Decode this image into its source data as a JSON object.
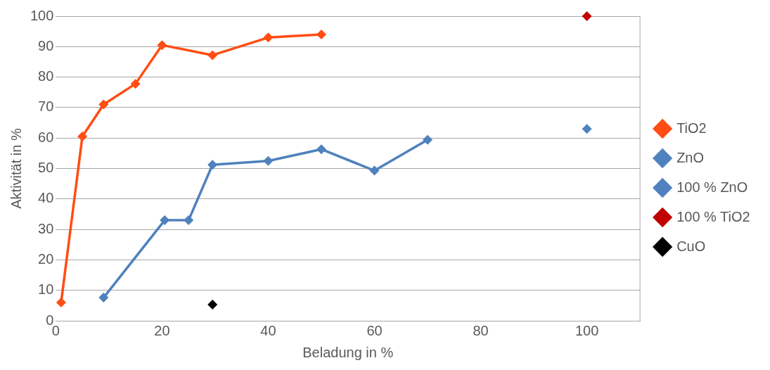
{
  "chart_data": {
    "type": "line",
    "xlabel": "Beladung in %",
    "ylabel": "Aktivität in %",
    "xlim": [
      0,
      110
    ],
    "xticks": [
      0,
      20,
      40,
      60,
      80,
      100
    ],
    "ylim": [
      0,
      100
    ],
    "yticks": [
      0,
      10,
      20,
      30,
      40,
      50,
      60,
      70,
      80,
      90,
      100
    ],
    "grid": "y",
    "legend": "right",
    "marker": "diamond",
    "line_style": "solid",
    "series": [
      {
        "name": "TiO2",
        "type": "line",
        "color": "#ff4d14",
        "x": [
          1,
          5,
          9,
          15,
          20,
          29.5,
          40,
          50
        ],
        "values": [
          6,
          60.5,
          71,
          77.8,
          90.5,
          87.2,
          93,
          94
        ]
      },
      {
        "name": "ZnO",
        "type": "line",
        "color": "#4f81bd",
        "x": [
          9,
          20.5,
          25,
          29.5,
          40,
          50,
          60,
          70
        ],
        "values": [
          7.6,
          33,
          33,
          51.2,
          52.5,
          56.3,
          49.3,
          59.4
        ]
      },
      {
        "name": "100 % ZnO",
        "type": "scatter",
        "color": "#4f81bd",
        "x": [
          100
        ],
        "values": [
          63
        ]
      },
      {
        "name": "100 % TiO2",
        "type": "scatter",
        "color": "#c00000",
        "x": [
          100
        ],
        "values": [
          100
        ]
      },
      {
        "name": "CuO",
        "type": "scatter",
        "color": "#000000",
        "x": [
          29.5
        ],
        "values": [
          5.3
        ]
      }
    ]
  }
}
